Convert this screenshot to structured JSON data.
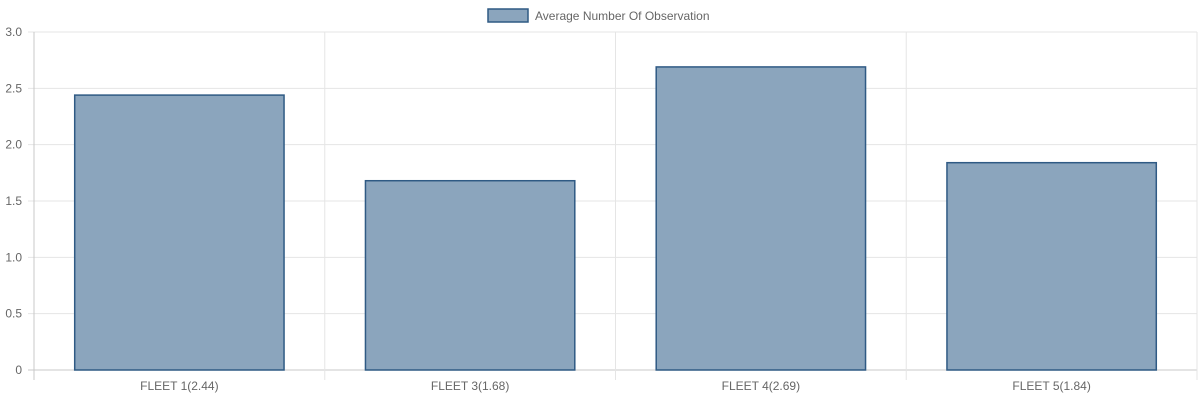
{
  "chart_data": {
    "type": "bar",
    "categories": [
      "FLEET 1(2.44)",
      "FLEET 3(1.68)",
      "FLEET 4(2.69)",
      "FLEET 5(1.84)"
    ],
    "series": [
      {
        "name": "Average Number Of Observation",
        "values": [
          2.44,
          1.68,
          2.69,
          1.84
        ]
      }
    ],
    "ylim": [
      0,
      3
    ],
    "yticks": [
      "0",
      "0.5",
      "1.0",
      "1.5",
      "2.0",
      "2.5",
      "3.0"
    ],
    "ytick_values": [
      0,
      0.5,
      1.0,
      1.5,
      2.0,
      2.5,
      3.0
    ],
    "grid": true,
    "legend_position": "top-center",
    "colors": {
      "bar_fill": "#8ba5bd",
      "bar_stroke": "#2f5a84",
      "grid": "#e5e5e5",
      "text": "#666666"
    }
  }
}
